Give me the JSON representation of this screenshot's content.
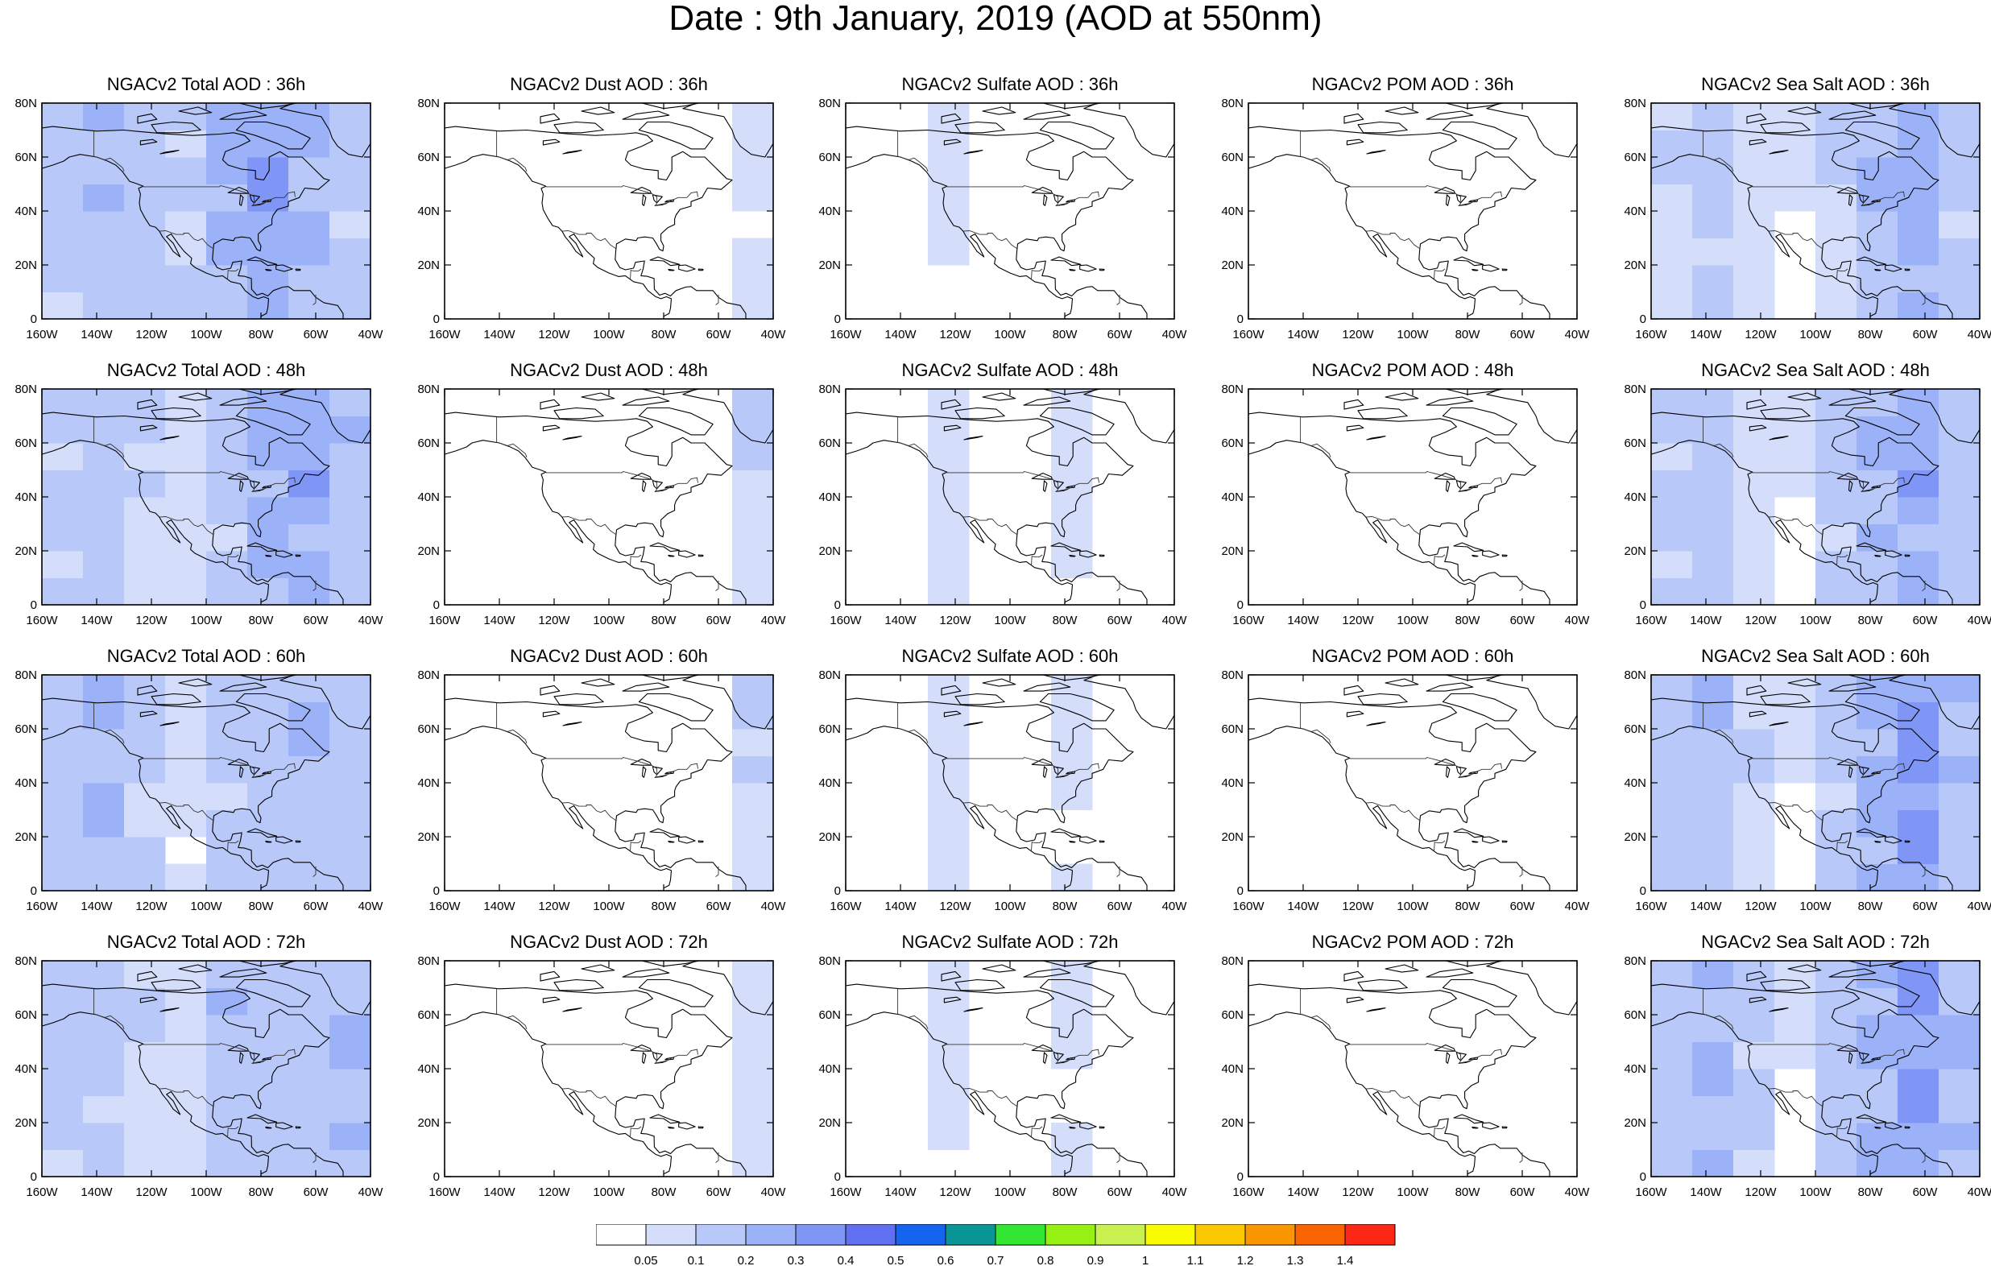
{
  "title": "Date : 9th January, 2019 (AOD at 550nm)",
  "columns": [
    {
      "id": "total",
      "label": "Total"
    },
    {
      "id": "dust",
      "label": "Dust"
    },
    {
      "id": "sulfate",
      "label": "Sulfate"
    },
    {
      "id": "pom",
      "label": "POM"
    },
    {
      "id": "seasalt",
      "label": "Sea Salt"
    }
  ],
  "panels": [
    [
      "NGACv2 Total AOD : 36h",
      "NGACv2 Dust AOD : 36h",
      "NGACv2 Sulfate AOD : 36h",
      "NGACv2 POM AOD : 36h",
      "NGACv2 Sea Salt AOD : 36h"
    ],
    [
      "NGACv2 Total AOD : 48h",
      "NGACv2 Dust AOD : 48h",
      "NGACv2 Sulfate AOD : 48h",
      "NGACv2 POM AOD : 48h",
      "NGACv2 Sea Salt AOD : 48h"
    ],
    [
      "NGACv2 Total AOD : 60h",
      "NGACv2 Dust AOD : 60h",
      "NGACv2 Sulfate AOD : 60h",
      "NGACv2 POM AOD : 60h",
      "NGACv2 Sea Salt AOD : 60h"
    ],
    [
      "NGACv2 Total AOD : 72h",
      "NGACv2 Dust AOD : 72h",
      "NGACv2 Sulfate AOD : 72h",
      "NGACv2 POM AOD : 72h",
      "NGACv2 Sea Salt  AOD : 72h"
    ]
  ],
  "map": {
    "lon_range": [
      -160,
      -40
    ],
    "lat_range": [
      0,
      80
    ],
    "x_ticks": [
      "160W",
      "140W",
      "120W",
      "100W",
      "80W",
      "60W",
      "40W"
    ],
    "y_ticks": [
      "0",
      "20N",
      "40N",
      "60N",
      "80N"
    ]
  },
  "colorbar": {
    "labels": [
      "0.05",
      "0.1",
      "0.2",
      "0.3",
      "0.4",
      "0.5",
      "0.6",
      "0.7",
      "0.8",
      "0.9",
      "1",
      "1.1",
      "1.2",
      "1.3",
      "1.4"
    ],
    "colors": [
      "#ffffff",
      "#d4defa",
      "#b8c8f8",
      "#9cb2f8",
      "#8096f6",
      "#6070f0",
      "#1464f0",
      "#0a9696",
      "#32e632",
      "#96f014",
      "#c8f050",
      "#fafa00",
      "#fac800",
      "#fa9600",
      "#fa6400",
      "#fa2814"
    ]
  },
  "aod_fields": {
    "total": [
      [
        0.15,
        0.2,
        0.18,
        0.12,
        0.25,
        0.3,
        0.22,
        0.15
      ],
      [
        0.12,
        0.15,
        0.1,
        0.08,
        0.15,
        0.25,
        0.3,
        0.2
      ],
      [
        0.18,
        0.22,
        0.12,
        0.06,
        0.12,
        0.15,
        0.2,
        0.15
      ],
      [
        0.15,
        0.12,
        0.1,
        0.08,
        0.2,
        0.15,
        0.18,
        0.22
      ]
    ],
    "dust": [
      [
        0,
        0,
        0,
        0,
        0,
        0,
        0,
        0.08
      ],
      [
        0,
        0,
        0,
        0,
        0,
        0,
        0,
        0.1
      ],
      [
        0,
        0,
        0,
        0,
        0,
        0,
        0,
        0.1
      ],
      [
        0,
        0,
        0,
        0,
        0,
        0,
        0,
        0.08
      ]
    ],
    "sulfate": [
      [
        0,
        0,
        0.06,
        0,
        0,
        0,
        0,
        0
      ],
      [
        0,
        0,
        0.08,
        0,
        0,
        0.06,
        0,
        0
      ],
      [
        0,
        0,
        0.08,
        0,
        0,
        0.06,
        0,
        0
      ],
      [
        0,
        0,
        0.06,
        0,
        0,
        0.06,
        0,
        0
      ]
    ],
    "pom": [
      [
        0,
        0,
        0,
        0,
        0,
        0,
        0,
        0
      ],
      [
        0,
        0,
        0,
        0,
        0,
        0,
        0,
        0
      ],
      [
        0,
        0,
        0,
        0,
        0,
        0,
        0,
        0
      ],
      [
        0,
        0,
        0,
        0,
        0,
        0,
        0,
        0
      ]
    ],
    "seasalt": [
      [
        0.1,
        0.12,
        0.08,
        0.05,
        0.1,
        0.2,
        0.28,
        0.15
      ],
      [
        0.12,
        0.15,
        0.08,
        0.05,
        0.12,
        0.22,
        0.3,
        0.18
      ],
      [
        0.15,
        0.2,
        0.1,
        0.05,
        0.15,
        0.25,
        0.35,
        0.2
      ],
      [
        0.18,
        0.22,
        0.12,
        0.05,
        0.18,
        0.25,
        0.35,
        0.22
      ]
    ]
  }
}
